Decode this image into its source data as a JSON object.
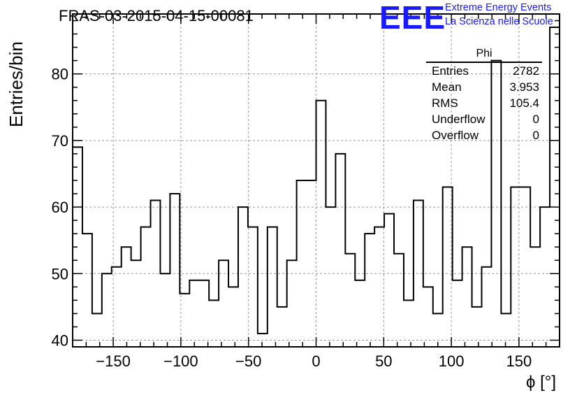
{
  "title": "FRAS-03-2015-04-15-00081",
  "logo": {
    "mark": "EEE",
    "line1": "Extreme Energy Events",
    "line2": "La Scienza nelle Scuole",
    "color": "#1a1aff"
  },
  "stats": {
    "title": "Phi",
    "rows": [
      {
        "label": "Entries",
        "value": "2782"
      },
      {
        "label": "Mean",
        "value": "3.953"
      },
      {
        "label": "RMS",
        "value": "105.4"
      },
      {
        "label": "Underflow",
        "value": "0"
      },
      {
        "label": "Overflow",
        "value": "0"
      }
    ]
  },
  "chart_data": {
    "type": "bar",
    "style": "step-histogram",
    "title": "FRAS-03-2015-04-15-00081",
    "xlabel": "ϕ [°]",
    "ylabel": "Entries/bin",
    "xlim": [
      -180,
      180
    ],
    "ylim": [
      39,
      89
    ],
    "bin_width": 7.2,
    "xticks": [
      -150,
      -100,
      -50,
      0,
      50,
      100,
      150
    ],
    "xtick_labels": [
      "−150",
      "−100",
      "−50",
      "0",
      "50",
      "100",
      "150"
    ],
    "yticks": [
      40,
      50,
      60,
      70,
      80
    ],
    "grid": true,
    "values": [
      69,
      56,
      44,
      50,
      51,
      54,
      52,
      57,
      61,
      50,
      62,
      47,
      49,
      49,
      46,
      52,
      48,
      60,
      57,
      41,
      57,
      45,
      52,
      64,
      64,
      76,
      60,
      68,
      53,
      49,
      56,
      57,
      59,
      53,
      46,
      61,
      48,
      44,
      63,
      49,
      54,
      45,
      51,
      82,
      44,
      63,
      63,
      54,
      60,
      87
    ]
  }
}
